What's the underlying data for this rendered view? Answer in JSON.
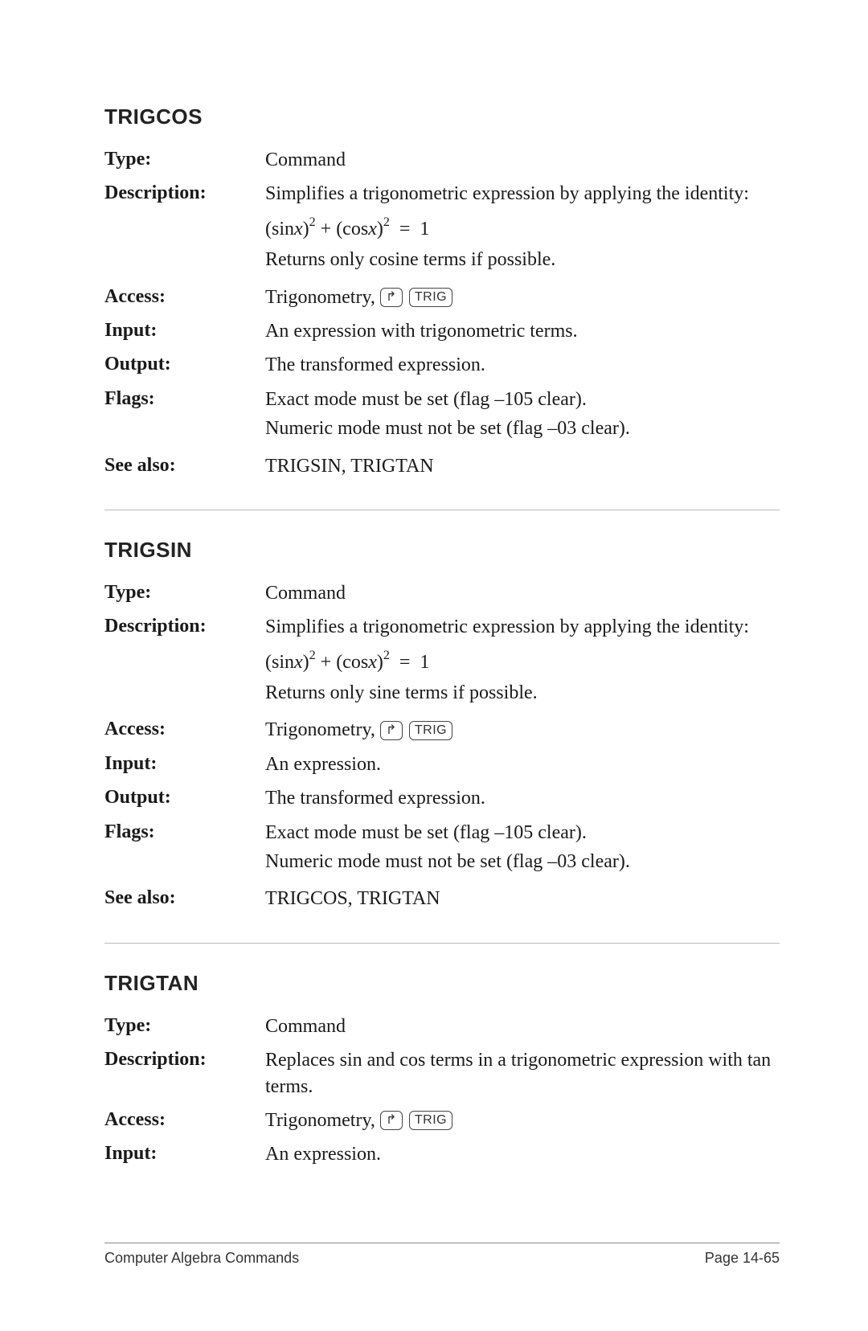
{
  "sections": [
    {
      "title": "TRIGCOS",
      "rows": {
        "type_label": "Type:",
        "type_value": "Command",
        "desc_label": "Description:",
        "desc_value": "Simplifies a trigonometric expression by applying the identity:",
        "formula": "(sin x)² + (cos x)²  =  1",
        "desc_value2": "Returns only cosine terms if possible.",
        "access_label": "Access:",
        "access_prefix": "Trigonometry,",
        "access_shift": "↱",
        "access_key": "TRIG",
        "input_label": "Input:",
        "input_value": "An expression with trigonometric terms.",
        "output_label": "Output:",
        "output_value": "The transformed expression.",
        "flags_label": "Flags:",
        "flags_value1": "Exact mode must be set (flag –105 clear).",
        "flags_value2": "Numeric mode must not be set (flag –03 clear).",
        "seealso_label": "See also:",
        "seealso_value": "TRIGSIN, TRIGTAN"
      }
    },
    {
      "title": "TRIGSIN",
      "rows": {
        "type_label": "Type:",
        "type_value": "Command",
        "desc_label": "Description:",
        "desc_value": "Simplifies a trigonometric expression by applying the identity:",
        "formula": "(sin x)² + (cos x)²  =  1",
        "desc_value2": "Returns only sine terms if possible.",
        "access_label": "Access:",
        "access_prefix": "Trigonometry,",
        "access_shift": "↱",
        "access_key": "TRIG",
        "input_label": "Input:",
        "input_value": "An expression.",
        "output_label": "Output:",
        "output_value": "The transformed expression.",
        "flags_label": "Flags:",
        "flags_value1": "Exact mode must be set (flag –105 clear).",
        "flags_value2": "Numeric mode must not be set (flag –03 clear).",
        "seealso_label": "See also:",
        "seealso_value": "TRIGCOS, TRIGTAN"
      }
    },
    {
      "title": "TRIGTAN",
      "rows": {
        "type_label": "Type:",
        "type_value": "Command",
        "desc_label": "Description:",
        "desc_value": "Replaces sin and cos terms in a trigonometric expression with tan terms.",
        "access_label": "Access:",
        "access_prefix": "Trigonometry,",
        "access_shift": "↱",
        "access_key": "TRIG",
        "input_label": "Input:",
        "input_value": "An expression."
      }
    }
  ],
  "footer": {
    "left": "Computer Algebra Commands",
    "right": "Page 14-65"
  }
}
